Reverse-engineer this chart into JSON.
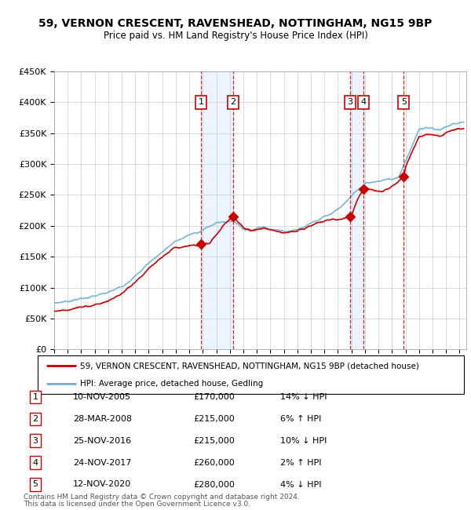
{
  "title": "59, VERNON CRESCENT, RAVENSHEAD, NOTTINGHAM, NG15 9BP",
  "subtitle": "Price paid vs. HM Land Registry's House Price Index (HPI)",
  "ylim": [
    0,
    450000
  ],
  "yticks": [
    0,
    50000,
    100000,
    150000,
    200000,
    250000,
    300000,
    350000,
    400000,
    450000
  ],
  "ytick_labels": [
    "£0",
    "£50K",
    "£100K",
    "£150K",
    "£200K",
    "£250K",
    "£300K",
    "£350K",
    "£400K",
    "£450K"
  ],
  "xlim_start": 1995.0,
  "xlim_end": 2025.5,
  "xticks": [
    1995,
    1996,
    1997,
    1998,
    1999,
    2000,
    2001,
    2002,
    2003,
    2004,
    2005,
    2006,
    2007,
    2008,
    2009,
    2010,
    2011,
    2012,
    2013,
    2014,
    2015,
    2016,
    2017,
    2018,
    2019,
    2020,
    2021,
    2022,
    2023,
    2024,
    2025
  ],
  "hpi_color": "#6baed6",
  "price_color": "#cc0000",
  "marker_color": "#cc0000",
  "vline_color": "#cc0000",
  "bg_color": "#ffffff",
  "grid_color": "#cccccc",
  "sale_shade_color": "#ddeeff",
  "transactions": [
    {
      "label": "1",
      "date": "10-NOV-2005",
      "year": 2005.87,
      "price": 170000,
      "pct": "14%",
      "dir": "↓",
      "note": "HPI"
    },
    {
      "label": "2",
      "date": "28-MAR-2008",
      "year": 2008.25,
      "price": 215000,
      "pct": "6%",
      "dir": "↑",
      "note": "HPI"
    },
    {
      "label": "3",
      "date": "25-NOV-2016",
      "year": 2016.9,
      "price": 215000,
      "pct": "10%",
      "dir": "↓",
      "note": "HPI"
    },
    {
      "label": "4",
      "date": "24-NOV-2017",
      "year": 2017.9,
      "price": 260000,
      "pct": "2%",
      "dir": "↑",
      "note": "HPI"
    },
    {
      "label": "5",
      "date": "12-NOV-2020",
      "year": 2020.87,
      "price": 280000,
      "pct": "4%",
      "dir": "↓",
      "note": "HPI"
    }
  ],
  "legend_line1": "59, VERNON CRESCENT, RAVENSHEAD, NOTTINGHAM, NG15 9BP (detached house)",
  "legend_line2": "HPI: Average price, detached house, Gedling",
  "footnote1": "Contains HM Land Registry data © Crown copyright and database right 2024.",
  "footnote2": "This data is licensed under the Open Government Licence v3.0.",
  "hpi_anchors": [
    [
      1995.0,
      75000
    ],
    [
      1996.0,
      78000
    ],
    [
      1997.0,
      82000
    ],
    [
      1998.0,
      86000
    ],
    [
      1999.0,
      92000
    ],
    [
      2000.0,
      102000
    ],
    [
      2001.0,
      118000
    ],
    [
      2002.0,
      140000
    ],
    [
      2003.0,
      158000
    ],
    [
      2004.0,
      175000
    ],
    [
      2005.0,
      185000
    ],
    [
      2006.0,
      193000
    ],
    [
      2007.0,
      205000
    ],
    [
      2008.0,
      208000
    ],
    [
      2008.5,
      205000
    ],
    [
      2009.0,
      195000
    ],
    [
      2009.5,
      192000
    ],
    [
      2010.0,
      196000
    ],
    [
      2010.5,
      198000
    ],
    [
      2011.0,
      196000
    ],
    [
      2011.5,
      193000
    ],
    [
      2012.0,
      191000
    ],
    [
      2012.5,
      192000
    ],
    [
      2013.0,
      194000
    ],
    [
      2013.5,
      198000
    ],
    [
      2014.0,
      205000
    ],
    [
      2014.5,
      210000
    ],
    [
      2015.0,
      215000
    ],
    [
      2015.5,
      220000
    ],
    [
      2016.0,
      228000
    ],
    [
      2016.5,
      235000
    ],
    [
      2017.0,
      248000
    ],
    [
      2017.5,
      258000
    ],
    [
      2018.0,
      268000
    ],
    [
      2018.5,
      270000
    ],
    [
      2019.0,
      272000
    ],
    [
      2019.5,
      275000
    ],
    [
      2020.0,
      275000
    ],
    [
      2020.5,
      280000
    ],
    [
      2021.0,
      305000
    ],
    [
      2021.5,
      330000
    ],
    [
      2022.0,
      355000
    ],
    [
      2022.5,
      360000
    ],
    [
      2023.0,
      358000
    ],
    [
      2023.5,
      355000
    ],
    [
      2024.0,
      360000
    ],
    [
      2024.5,
      365000
    ],
    [
      2025.3,
      368000
    ]
  ],
  "price_anchors": [
    [
      1995.0,
      62000
    ],
    [
      1996.0,
      64000
    ],
    [
      1997.0,
      68000
    ],
    [
      1998.0,
      72000
    ],
    [
      1999.0,
      78000
    ],
    [
      2000.0,
      90000
    ],
    [
      2001.0,
      108000
    ],
    [
      2002.0,
      130000
    ],
    [
      2003.0,
      150000
    ],
    [
      2004.0,
      165000
    ],
    [
      2005.0,
      168000
    ],
    [
      2005.87,
      170000
    ],
    [
      2006.0,
      168000
    ],
    [
      2006.5,
      172000
    ],
    [
      2007.0,
      185000
    ],
    [
      2007.5,
      200000
    ],
    [
      2008.25,
      215000
    ],
    [
      2008.5,
      210000
    ],
    [
      2009.0,
      198000
    ],
    [
      2009.5,
      192000
    ],
    [
      2010.0,
      194000
    ],
    [
      2010.5,
      196000
    ],
    [
      2011.0,
      194000
    ],
    [
      2011.5,
      190000
    ],
    [
      2012.0,
      188000
    ],
    [
      2012.5,
      190000
    ],
    [
      2013.0,
      192000
    ],
    [
      2013.5,
      196000
    ],
    [
      2014.0,
      200000
    ],
    [
      2014.5,
      205000
    ],
    [
      2015.0,
      208000
    ],
    [
      2015.5,
      210000
    ],
    [
      2016.0,
      210000
    ],
    [
      2016.9,
      215000
    ],
    [
      2017.0,
      218000
    ],
    [
      2017.5,
      245000
    ],
    [
      2017.9,
      260000
    ],
    [
      2018.0,
      262000
    ],
    [
      2018.5,
      258000
    ],
    [
      2019.0,
      255000
    ],
    [
      2019.5,
      258000
    ],
    [
      2020.0,
      262000
    ],
    [
      2020.87,
      280000
    ],
    [
      2021.0,
      295000
    ],
    [
      2021.5,
      320000
    ],
    [
      2022.0,
      345000
    ],
    [
      2022.5,
      348000
    ],
    [
      2023.0,
      348000
    ],
    [
      2023.5,
      345000
    ],
    [
      2024.0,
      350000
    ],
    [
      2024.5,
      355000
    ],
    [
      2025.3,
      358000
    ]
  ]
}
